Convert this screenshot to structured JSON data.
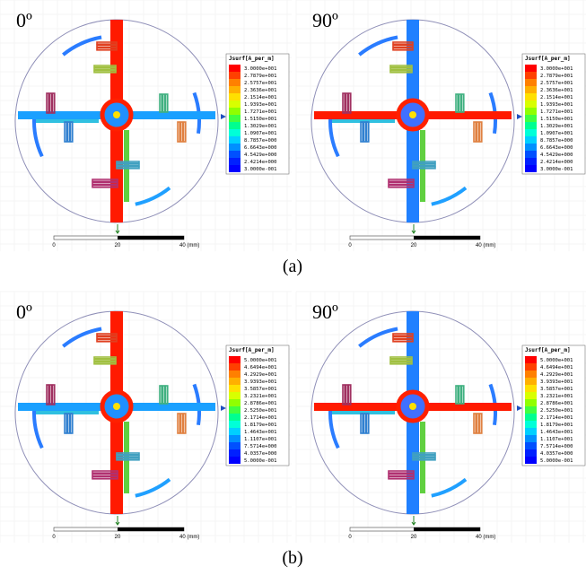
{
  "figures": [
    {
      "caption": "(a)",
      "panels": [
        {
          "angle": "0º",
          "legend_title": "Jsurf[A_per_m]",
          "legend_labels": [
            "3.0000e+001",
            "2.7879e+001",
            "2.5757e+001",
            "2.3636e+001",
            "2.1514e+001",
            "1.9393e+001",
            "1.7271e+001",
            "1.5150e+001",
            "1.3029e+001",
            "1.0907e+001",
            "8.7857e+000",
            "6.6643e+000",
            "4.5429e+000",
            "2.4214e+000",
            "3.0000e-001"
          ],
          "scale_labels": [
            "0",
            "20",
            "40 (mm)"
          ]
        },
        {
          "angle": "90º",
          "legend_title": "Jsurf[A_per_m]",
          "legend_labels": [
            "3.0000e+001",
            "2.7879e+001",
            "2.5757e+001",
            "2.3636e+001",
            "2.1514e+001",
            "1.9393e+001",
            "1.7271e+001",
            "1.5150e+001",
            "1.3029e+001",
            "1.0907e+001",
            "8.7857e+000",
            "6.6643e+000",
            "4.5429e+000",
            "2.4214e+000",
            "3.0000e-001"
          ],
          "scale_labels": [
            "0",
            "20",
            "40 (mm)"
          ]
        }
      ]
    },
    {
      "caption": "(b)",
      "panels": [
        {
          "angle": "0º",
          "legend_title": "Jsurf[A_per_m]",
          "legend_labels": [
            "5.0000e+001",
            "4.6494e+001",
            "4.2929e+001",
            "3.9393e+001",
            "3.5857e+001",
            "3.2321e+001",
            "2.8786e+001",
            "2.5250e+001",
            "2.1714e+001",
            "1.8179e+001",
            "1.4643e+001",
            "1.1107e+001",
            "7.5714e+000",
            "4.0357e+000",
            "5.0000e-001"
          ],
          "scale_labels": [
            "0",
            "20",
            "40 (mm)"
          ]
        },
        {
          "angle": "90º",
          "legend_title": "Jsurf[A_per_m]",
          "legend_labels": [
            "5.0000e+001",
            "4.6494e+001",
            "4.2929e+001",
            "3.9393e+001",
            "3.5857e+001",
            "3.2321e+001",
            "2.8786e+001",
            "2.5250e+001",
            "2.1714e+001",
            "1.8179e+001",
            "1.4643e+001",
            "1.1107e+001",
            "7.5714e+000",
            "4.0357e+000",
            "5.0000e-001"
          ],
          "scale_labels": [
            "0",
            "20",
            "40 (mm)"
          ]
        }
      ]
    }
  ]
}
